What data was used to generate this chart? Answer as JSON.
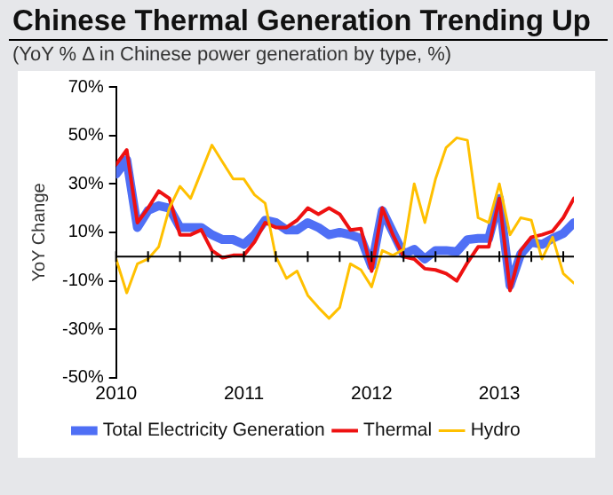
{
  "chart_data": {
    "type": "line",
    "title": "Chinese Thermal Generation Trending Up",
    "subtitle": "(YoY % Δ in Chinese power generation by type, %)",
    "ylabel": "YoY Change",
    "x": [
      "2010-01",
      "2010-02",
      "2010-03",
      "2010-04",
      "2010-05",
      "2010-06",
      "2010-07",
      "2010-08",
      "2010-09",
      "2010-10",
      "2010-11",
      "2010-12",
      "2011-01",
      "2011-02",
      "2011-03",
      "2011-04",
      "2011-05",
      "2011-06",
      "2011-07",
      "2011-08",
      "2011-09",
      "2011-10",
      "2011-11",
      "2011-12",
      "2012-01",
      "2012-02",
      "2012-03",
      "2012-04",
      "2012-05",
      "2012-06",
      "2012-07",
      "2012-08",
      "2012-09",
      "2012-10",
      "2012-11",
      "2012-12",
      "2013-01",
      "2013-02",
      "2013-03",
      "2013-04",
      "2013-05",
      "2013-06",
      "2013-07",
      "2013-08"
    ],
    "series": [
      {
        "name": "Total Electricity Generation",
        "color": "#4f6ff5",
        "values": [
          34,
          40,
          12,
          19,
          21,
          20,
          12,
          12,
          12,
          9,
          7,
          7,
          5,
          9,
          15,
          14,
          11,
          11,
          14,
          12,
          9,
          10,
          9,
          7.5,
          -4,
          19,
          10,
          1,
          3,
          -1,
          2.5,
          2.5,
          2,
          7,
          7.5,
          7.5,
          24,
          -12,
          1,
          6,
          5,
          7.5,
          9.5,
          14
        ]
      },
      {
        "name": "Thermal",
        "color": "#ee1111",
        "values": [
          38,
          44,
          14,
          20,
          27,
          24,
          9,
          9,
          11,
          2.5,
          -0.5,
          0.5,
          0.5,
          6,
          14,
          12,
          12,
          15,
          20,
          17.5,
          20,
          17.5,
          11,
          11.5,
          -6,
          20,
          9,
          0,
          -1,
          -5,
          -5.5,
          -7,
          -10,
          -2.5,
          4,
          4,
          24,
          -14,
          2.5,
          8,
          9,
          10.5,
          16,
          24
        ]
      },
      {
        "name": "Hydro",
        "color": "#ffc000",
        "values": [
          -1,
          -15,
          -3,
          -1,
          4,
          20,
          29,
          24,
          35,
          46,
          39,
          32,
          32,
          25.5,
          22,
          0,
          -9,
          -6,
          -16,
          -21,
          -25.5,
          -21,
          -3,
          -5.5,
          -12.5,
          2.5,
          0.5,
          3,
          30,
          14,
          32,
          45,
          49,
          48,
          16,
          14,
          30,
          9,
          16,
          15,
          -1,
          8,
          -7,
          -11
        ]
      }
    ],
    "xlim": [
      "2010-01",
      "2013-08"
    ],
    "xticks": [
      "2010",
      {
        "value": "2010-04",
        "label": null
      },
      {
        "value": "2010-07",
        "label": null
      },
      {
        "value": "2010-10",
        "label": null
      },
      "2011",
      {
        "value": "2011-04",
        "label": null
      },
      {
        "value": "2011-07",
        "label": null
      },
      {
        "value": "2011-10",
        "label": null
      },
      "2012",
      {
        "value": "2012-04",
        "label": null
      },
      {
        "value": "2012-07",
        "label": null
      },
      {
        "value": "2012-10",
        "label": null
      },
      "2013",
      {
        "value": "2013-04",
        "label": null
      },
      {
        "value": "2013-07",
        "label": null
      }
    ],
    "ylim": [
      -50,
      70
    ],
    "yticks": [
      {
        "value": -50,
        "label": "-50%"
      },
      {
        "value": -30,
        "label": "-30%"
      },
      {
        "value": -10,
        "label": "-10%"
      },
      {
        "value": 10,
        "label": "10%"
      },
      {
        "value": 30,
        "label": "30%"
      },
      {
        "value": 50,
        "label": "50%"
      },
      {
        "value": 70,
        "label": "70%"
      }
    ],
    "grid": false,
    "legend": "bottom",
    "marker": "none",
    "line_style": "solid"
  }
}
